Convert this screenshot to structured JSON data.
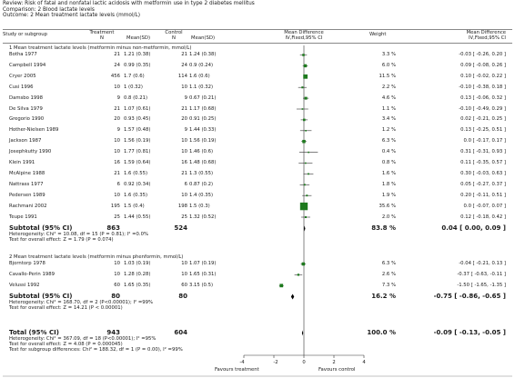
{
  "header": {
    "review": "Review:  Risk of fatal and nonfatal lactic acidosis with metformin use in type 2 diabetes mellitus",
    "comparison": "Comparison:  2 Blood lactate levels",
    "outcome": "Outcome:  2 Mean treatment lactate levels (mmol/L)"
  },
  "columns": {
    "study": "Study or subgroup",
    "treatment_top": "Treatment",
    "control_top": "Control",
    "n": "N",
    "mean_sd": "Mean(SD)",
    "md_top": "Mean Difference",
    "md_method": "IV,Fixed,95% CI",
    "weight": "Weight",
    "md_right_top": "Mean Difference",
    "md_right_method": "IV,Fixed,95% CI"
  },
  "groups": [
    {
      "title": "1 Mean treatment lactate levels (metformin minus non-metformin, mmol/L)",
      "studies": [
        {
          "name": "Botha 1977",
          "tn": "21",
          "tm": "1.21 (0.38)",
          "cn": "21",
          "cm": "1.24 (0.38)",
          "weight": "3.3 %",
          "ci": "-0.03 [ -0.26, 0.20 ]",
          "md": -0.03,
          "lo": -0.26,
          "hi": 0.2,
          "w": 3.3
        },
        {
          "name": "Campbell 1994",
          "tn": "24",
          "tm": "0.99 (0.35)",
          "cn": "24",
          "cm": "0.9 (0.24)",
          "weight": "6.0 %",
          "ci": "0.09 [ -0.08, 0.26 ]",
          "md": 0.09,
          "lo": -0.08,
          "hi": 0.26,
          "w": 6.0
        },
        {
          "name": "Cryer 2005",
          "tn": "456",
          "tm": "1.7 (0.6)",
          "cn": "114",
          "cm": "1.6 (0.6)",
          "weight": "11.5 %",
          "ci": "0.10 [ -0.02, 0.22 ]",
          "md": 0.1,
          "lo": -0.02,
          "hi": 0.22,
          "w": 11.5
        },
        {
          "name": "Cusi 1996",
          "tn": "10",
          "tm": "1 (0.32)",
          "cn": "10",
          "cm": "1.1 (0.32)",
          "weight": "2.2 %",
          "ci": "-0.10 [ -0.38, 0.18 ]",
          "md": -0.1,
          "lo": -0.38,
          "hi": 0.18,
          "w": 2.2
        },
        {
          "name": "Damsbo 1998",
          "tn": "9",
          "tm": "0.8 (0.21)",
          "cn": "9",
          "cm": "0.67 (0.21)",
          "weight": "4.6 %",
          "ci": "0.13 [ -0.06, 0.32 ]",
          "md": 0.13,
          "lo": -0.06,
          "hi": 0.32,
          "w": 4.6
        },
        {
          "name": "De Silva 1979",
          "tn": "21",
          "tm": "1.07 (0.61)",
          "cn": "21",
          "cm": "1.17 (0.68)",
          "weight": "1.1 %",
          "ci": "-0.10 [ -0.49, 0.29 ]",
          "md": -0.1,
          "lo": -0.49,
          "hi": 0.29,
          "w": 1.1
        },
        {
          "name": "Gregorio 1990",
          "tn": "20",
          "tm": "0.93 (0.45)",
          "cn": "20",
          "cm": "0.91 (0.25)",
          "weight": "3.4 %",
          "ci": "0.02 [ -0.21, 0.25 ]",
          "md": 0.02,
          "lo": -0.21,
          "hi": 0.25,
          "w": 3.4
        },
        {
          "name": "Hother-Nielsen 1989",
          "tn": "9",
          "tm": "1.57 (0.48)",
          "cn": "9",
          "cm": "1.44 (0.33)",
          "weight": "1.2 %",
          "ci": "0.13 [ -0.25, 0.51 ]",
          "md": 0.13,
          "lo": -0.25,
          "hi": 0.51,
          "w": 1.2
        },
        {
          "name": "Jackson 1987",
          "tn": "10",
          "tm": "1.56 (0.19)",
          "cn": "10",
          "cm": "1.56 (0.19)",
          "weight": "6.3 %",
          "ci": "0.0 [ -0.17, 0.17 ]",
          "md": 0.0,
          "lo": -0.17,
          "hi": 0.17,
          "w": 6.3
        },
        {
          "name": "Josephkutty 1990",
          "tn": "10",
          "tm": "1.77 (0.81)",
          "cn": "10",
          "cm": "1.46 (0.6)",
          "weight": "0.4 %",
          "ci": "0.31 [ -0.31, 0.93 ]",
          "md": 0.31,
          "lo": -0.31,
          "hi": 0.93,
          "w": 0.4
        },
        {
          "name": "Klein 1991",
          "tn": "16",
          "tm": "1.59 (0.64)",
          "cn": "16",
          "cm": "1.48 (0.68)",
          "weight": "0.8 %",
          "ci": "0.11 [ -0.35, 0.57 ]",
          "md": 0.11,
          "lo": -0.35,
          "hi": 0.57,
          "w": 0.8
        },
        {
          "name": "McAlpine 1988",
          "tn": "21",
          "tm": "1.6 (0.55)",
          "cn": "21",
          "cm": "1.3 (0.55)",
          "weight": "1.6 %",
          "ci": "0.30 [ -0.03, 0.63 ]",
          "md": 0.3,
          "lo": -0.03,
          "hi": 0.63,
          "w": 1.6
        },
        {
          "name": "Nattrass 1977",
          "tn": "6",
          "tm": "0.92 (0.34)",
          "cn": "6",
          "cm": "0.87 (0.2)",
          "weight": "1.8 %",
          "ci": "0.05 [ -0.27, 0.37 ]",
          "md": 0.05,
          "lo": -0.27,
          "hi": 0.37,
          "w": 1.8
        },
        {
          "name": "Pedersen 1989",
          "tn": "10",
          "tm": "1.6 (0.35)",
          "cn": "10",
          "cm": "1.4 (0.35)",
          "weight": "1.9 %",
          "ci": "0.20 [ -0.11, 0.51 ]",
          "md": 0.2,
          "lo": -0.11,
          "hi": 0.51,
          "w": 1.9
        },
        {
          "name": "Rachmani 2002",
          "tn": "195",
          "tm": "1.5 (0.4)",
          "cn": "198",
          "cm": "1.5 (0.3)",
          "weight": "35.6 %",
          "ci": "0.0 [ -0.07, 0.07 ]",
          "md": 0.0,
          "lo": -0.07,
          "hi": 0.07,
          "w": 35.6
        },
        {
          "name": "Teupe 1991",
          "tn": "25",
          "tm": "1.44 (0.55)",
          "cn": "25",
          "cm": "1.32 (0.52)",
          "weight": "2.0 %",
          "ci": "0.12 [ -0.18, 0.42 ]",
          "md": 0.12,
          "lo": -0.18,
          "hi": 0.42,
          "w": 2.0
        }
      ],
      "subtotal": {
        "label": "Subtotal (95% CI)",
        "tn": "863",
        "cn": "524",
        "weight": "83.8 %",
        "ci": "0.04 [ 0.00, 0.09 ]",
        "md": 0.04,
        "lo": 0.0,
        "hi": 0.09
      },
      "heterogeneity": "Heterogeneity: Chi² = 10.08, df = 15 (P = 0.81); I² =0.0%",
      "overall_test": "Test for overall effect: Z = 1.79 (P = 0.074)"
    },
    {
      "title": "2 Mean treatment lactate levels (metformin minus phenformin, mmol/L)",
      "studies": [
        {
          "name": "Bjorntorp 1978",
          "tn": "10",
          "tm": "1.03 (0.19)",
          "cn": "10",
          "cm": "1.07 (0.19)",
          "weight": "6.3 %",
          "ci": "-0.04 [ -0.21, 0.13 ]",
          "md": -0.04,
          "lo": -0.21,
          "hi": 0.13,
          "w": 6.3
        },
        {
          "name": "Cavallo-Perin 1989",
          "tn": "10",
          "tm": "1.28 (0.28)",
          "cn": "10",
          "cm": "1.65 (0.31)",
          "weight": "2.6 %",
          "ci": "-0.37 [ -0.63, -0.11 ]",
          "md": -0.37,
          "lo": -0.63,
          "hi": -0.11,
          "w": 2.6
        },
        {
          "name": "Velussi 1992",
          "tn": "60",
          "tm": "1.65 (0.35)",
          "cn": "60",
          "cm": "3.15 (0.5)",
          "weight": "7.3 %",
          "ci": "-1.50 [ -1.65, -1.35 ]",
          "md": -1.5,
          "lo": -1.65,
          "hi": -1.35,
          "w": 7.3
        }
      ],
      "subtotal": {
        "label": "Subtotal (95% CI)",
        "tn": "80",
        "cn": "80",
        "weight": "16.2 %",
        "ci": "-0.75 [ -0.86, -0.65 ]",
        "md": -0.75,
        "lo": -0.86,
        "hi": -0.65
      },
      "heterogeneity": "Heterogeneity: Chi² = 168.70, df = 2 (P<0.00001); I² =99%",
      "overall_test": "Test for overall effect: Z = 14.21 (P < 0.00001)"
    }
  ],
  "total": {
    "label": "Total (95% CI)",
    "tn": "943",
    "cn": "604",
    "weight": "100.0 %",
    "ci": "-0.09 [ -0.13, -0.05 ]",
    "md": -0.09,
    "lo": -0.13,
    "hi": -0.05
  },
  "total_heterogeneity": "Heterogeneity: Chi² = 367.09, df = 18 (P<0.00001); I² =95%",
  "total_overall_test": "Test for overall effect: Z = 4.08 (P = 0.000045)",
  "subgroup_test": "Test for subgroup differences: Chi² = 188.32, df = 1 (P = 0.00), I² =99%",
  "axis": {
    "ticks": [
      "-4",
      "-2",
      "0",
      "2",
      "4"
    ],
    "left_label": "Favours treatment",
    "right_label": "Favours control"
  },
  "colors": {
    "marker": "#1e7a1e",
    "line": "#333333"
  },
  "chart_data": {
    "type": "forest",
    "xlim": [
      -4,
      4
    ],
    "xticks": [
      -4,
      -2,
      0,
      2,
      4
    ]
  }
}
